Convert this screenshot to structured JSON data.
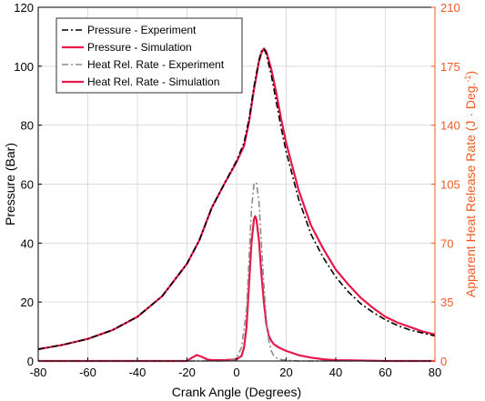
{
  "chart_data": {
    "type": "line",
    "xlabel": "Crank Angle (Degrees)",
    "ylabel_left": "Pressure (Bar)",
    "ylabel_right_main": "Apparent Heat Release Rate (J · Deg.",
    "ylabel_right_sup": "-1",
    "ylabel_right_close": ")",
    "xlim": [
      -80,
      80
    ],
    "ylim_left": [
      0,
      120
    ],
    "ylim_right": [
      0,
      210
    ],
    "xticks": [
      -80,
      -60,
      -40,
      -20,
      0,
      20,
      40,
      60,
      80
    ],
    "yticks_left": [
      0,
      20,
      40,
      60,
      80,
      100,
      120
    ],
    "yticks_right": [
      0,
      35,
      70,
      105,
      140,
      175,
      210
    ],
    "grid": true,
    "legend_position": "top-left",
    "colors": {
      "right_axis": "#f15a22",
      "simulation": "#e8174a",
      "experiment_pressure": "#000000",
      "experiment_hrr": "#8c8c8c"
    },
    "series": [
      {
        "name": "Pressure - Experiment",
        "axis": "left",
        "style": "dashdot",
        "color": "#000000",
        "x": [
          -80,
          -70,
          -60,
          -50,
          -40,
          -30,
          -20,
          -15,
          -10,
          -5,
          0,
          3,
          5,
          7,
          9,
          10,
          11,
          12,
          14,
          16,
          18,
          20,
          25,
          30,
          35,
          40,
          45,
          50,
          55,
          60,
          65,
          70,
          75,
          80
        ],
        "y": [
          4,
          5.5,
          7.5,
          10.5,
          15,
          22,
          33,
          41,
          52,
          60,
          68,
          74,
          82,
          93,
          102,
          105,
          106,
          104,
          97,
          88,
          79,
          71,
          55,
          43,
          35,
          28.5,
          23.5,
          19.5,
          16.5,
          14,
          12,
          10.5,
          9.5,
          8.5
        ]
      },
      {
        "name": "Pressure - Simulation",
        "axis": "left",
        "style": "solid",
        "color": "#e8174a",
        "x": [
          -80,
          -70,
          -60,
          -50,
          -40,
          -30,
          -20,
          -15,
          -10,
          -5,
          0,
          3,
          5,
          7,
          9,
          10,
          11,
          12,
          14,
          16,
          18,
          20,
          25,
          30,
          35,
          40,
          45,
          50,
          55,
          60,
          65,
          70,
          75,
          80
        ],
        "y": [
          4,
          5.5,
          7.5,
          10.5,
          15,
          22,
          33,
          41,
          52,
          60,
          67.5,
          73,
          81,
          92,
          101.5,
          104.5,
          106,
          105,
          99,
          91,
          82,
          74,
          58,
          46,
          38,
          31,
          26,
          21.5,
          18,
          15,
          13,
          11.5,
          10,
          9
        ]
      },
      {
        "name": "Heat Rel. Rate - Experiment",
        "axis": "right",
        "style": "dashdot",
        "color": "#8c8c8c",
        "x": [
          -80,
          -20,
          -10,
          -5,
          -2,
          0,
          2,
          4,
          5,
          6,
          7,
          8,
          9,
          10,
          11,
          12,
          13,
          14,
          15,
          17,
          20,
          25,
          80
        ],
        "y": [
          0,
          0,
          0,
          0,
          0.5,
          2,
          8,
          30,
          60,
          90,
          105,
          106,
          95,
          70,
          45,
          25,
          12,
          6,
          3,
          1,
          0.5,
          0,
          0
        ]
      },
      {
        "name": "Heat Rel. Rate - Simulation",
        "axis": "right",
        "style": "solid",
        "color": "#e8174a",
        "x": [
          -80,
          -20,
          -18,
          -16,
          -14,
          -12,
          -10,
          -5,
          0,
          2,
          3,
          4,
          5,
          6,
          7,
          7.5,
          8,
          9,
          10,
          11,
          12,
          13,
          14,
          15,
          17,
          20,
          25,
          30,
          35,
          40,
          50,
          60,
          80
        ],
        "y": [
          0,
          0,
          2,
          3.5,
          2.5,
          1,
          0.5,
          0.5,
          1,
          3,
          8,
          20,
          45,
          70,
          84,
          86,
          84,
          72,
          52,
          35,
          22,
          15,
          12,
          10,
          8,
          6,
          3.5,
          2,
          1,
          0.5,
          0.3,
          0,
          0
        ]
      }
    ]
  }
}
